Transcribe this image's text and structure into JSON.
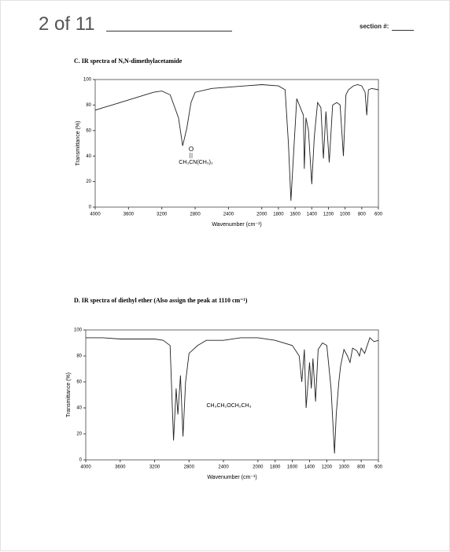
{
  "header": {
    "page": "2 of 11",
    "section_label": "section #:"
  },
  "chart_data": [
    {
      "type": "line",
      "title": "C. IR spectra of N,N-dimethylacetamide",
      "x_label": "Wavenumber (cm⁻¹)",
      "y_label": "Transmittance (%)",
      "annotation_top": "O",
      "annotation": "CH₃CN(CH₃)₂",
      "x": [
        4000,
        3900,
        3800,
        3700,
        3600,
        3500,
        3400,
        3300,
        3200,
        3100,
        3000,
        2950,
        2900,
        2850,
        2800,
        2600,
        2400,
        2200,
        2000,
        1800,
        1720,
        1680,
        1650,
        1620,
        1580,
        1500,
        1490,
        1470,
        1440,
        1400,
        1370,
        1330,
        1290,
        1260,
        1230,
        1190,
        1150,
        1100,
        1060,
        1020,
        990,
        960,
        900,
        850,
        800,
        760,
        740,
        720,
        680,
        600
      ],
      "values": [
        76,
        78,
        80,
        82,
        84,
        86,
        88,
        90,
        91,
        88,
        70,
        48,
        62,
        82,
        90,
        93,
        94,
        95,
        96,
        95,
        92,
        50,
        5,
        40,
        85,
        72,
        30,
        70,
        60,
        18,
        55,
        82,
        78,
        38,
        75,
        35,
        80,
        82,
        80,
        40,
        88,
        92,
        95,
        96,
        95,
        90,
        72,
        92,
        93,
        92
      ],
      "xlim": [
        4000,
        600
      ],
      "ylim": [
        0,
        100
      ],
      "xticks": [
        4000,
        3600,
        3200,
        2800,
        2400,
        2000,
        1800,
        1600,
        1400,
        1200,
        1000,
        800,
        600
      ],
      "yticks": [
        0,
        20,
        40,
        60,
        80,
        100
      ],
      "color": "#222222"
    },
    {
      "type": "line",
      "title": "D. IR spectra of diethyl ether (Also assign the peak at 1110 cm⁻¹)",
      "x_label": "Wavenumber (cm⁻¹)",
      "y_label": "Transmittance (%)",
      "annotation": "CH₃CH₂OCH₂CH₃",
      "x": [
        4000,
        3800,
        3600,
        3400,
        3200,
        3100,
        3020,
        2980,
        2950,
        2930,
        2900,
        2870,
        2840,
        2800,
        2700,
        2600,
        2400,
        2200,
        2000,
        1800,
        1600,
        1520,
        1490,
        1460,
        1440,
        1400,
        1380,
        1360,
        1330,
        1300,
        1250,
        1200,
        1150,
        1130,
        1110,
        1090,
        1060,
        1040,
        1000,
        960,
        930,
        900,
        850,
        820,
        800,
        760,
        700,
        650,
        600
      ],
      "values": [
        94,
        94,
        93,
        93,
        93,
        92,
        88,
        15,
        55,
        35,
        65,
        18,
        60,
        82,
        88,
        92,
        92,
        94,
        94,
        92,
        88,
        80,
        60,
        85,
        40,
        75,
        55,
        78,
        45,
        85,
        90,
        88,
        55,
        30,
        5,
        35,
        60,
        72,
        85,
        80,
        75,
        86,
        84,
        80,
        86,
        82,
        94,
        91,
        92
      ],
      "xlim": [
        4000,
        600
      ],
      "ylim": [
        0,
        100
      ],
      "xticks": [
        4000,
        3600,
        3200,
        2800,
        2400,
        2000,
        1800,
        1600,
        1400,
        1200,
        1000,
        800,
        600
      ],
      "yticks": [
        0,
        20,
        40,
        60,
        80,
        100
      ],
      "color": "#222222"
    }
  ]
}
